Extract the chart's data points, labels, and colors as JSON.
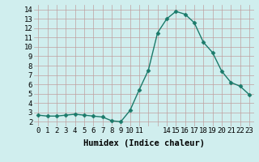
{
  "x": [
    0,
    1,
    2,
    3,
    4,
    5,
    6,
    7,
    8,
    9,
    10,
    11,
    12,
    13,
    14,
    15,
    16,
    17,
    18,
    19,
    20,
    21,
    22,
    23
  ],
  "y": [
    2.7,
    2.6,
    2.6,
    2.7,
    2.8,
    2.7,
    2.6,
    2.5,
    2.1,
    2.0,
    3.2,
    5.4,
    7.5,
    11.5,
    13.0,
    13.8,
    13.5,
    12.6,
    10.5,
    9.4,
    7.4,
    6.2,
    5.8,
    4.9
  ],
  "line_color": "#1a7a6a",
  "marker": "D",
  "marker_size": 2.5,
  "xlabel": "Humidex (Indice chaleur)",
  "xlim": [
    -0.5,
    23.5
  ],
  "ylim": [
    1.5,
    14.5
  ],
  "yticks": [
    2,
    3,
    4,
    5,
    6,
    7,
    8,
    9,
    10,
    11,
    12,
    13,
    14
  ],
  "xtick_positions": [
    0,
    1,
    2,
    3,
    4,
    5,
    6,
    7,
    8,
    9,
    10,
    11,
    12,
    13,
    14,
    15,
    16,
    17,
    18,
    19,
    20,
    21,
    22,
    23
  ],
  "xtick_labels": [
    "0",
    "1",
    "2",
    "3",
    "4",
    "5",
    "6",
    "7",
    "8",
    "9",
    "10",
    "11",
    "",
    "",
    "14",
    "15",
    "16",
    "17",
    "18",
    "19",
    "20",
    "21",
    "22",
    "23"
  ],
  "background_color": "#d0eeee",
  "grid_color": "#c0a0a0",
  "xlabel_fontsize": 7.5,
  "tick_fontsize": 6.5,
  "linewidth": 1.0
}
